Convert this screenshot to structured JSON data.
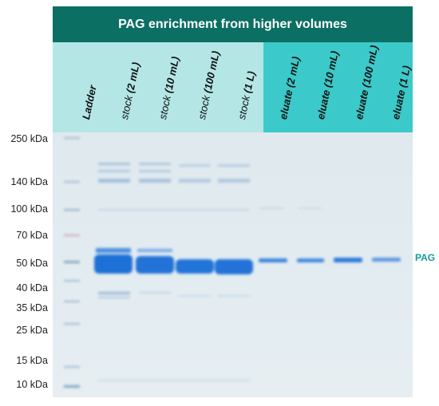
{
  "title": "PAG enrichment from higher volumes",
  "lanes": [
    {
      "prefix": "Ladder",
      "volume": "",
      "group": "ladder"
    },
    {
      "prefix": "stock ",
      "volume": "(2 mL)",
      "group": "stock"
    },
    {
      "prefix": "stock ",
      "volume": "(10 mL)",
      "group": "stock"
    },
    {
      "prefix": "stock ",
      "volume": "(100 mL)",
      "group": "stock"
    },
    {
      "prefix": "stock ",
      "volume": "(1 L)",
      "group": "stock"
    },
    {
      "prefix": "eluate ",
      "volume": "(2 mL)",
      "group": "eluate"
    },
    {
      "prefix": "eluate ",
      "volume": "(10 mL)",
      "group": "eluate"
    },
    {
      "prefix": "eluate ",
      "volume": "(100 mL)",
      "group": "eluate"
    },
    {
      "prefix": "eluate ",
      "volume": "(1 L)",
      "group": "eluate"
    }
  ],
  "mw_markers": [
    {
      "label": "250 kDa",
      "kda": 250
    },
    {
      "label": "140 kDa",
      "kda": 140
    },
    {
      "label": "100 kDa",
      "kda": 100
    },
    {
      "label": "70 kDa",
      "kda": 70
    },
    {
      "label": "50 kDa",
      "kda": 50
    },
    {
      "label": "40 kDa",
      "kda": 40
    },
    {
      "label": "35 kDa",
      "kda": 35
    },
    {
      "label": "25 kDa",
      "kda": 25
    },
    {
      "label": "15 kDa",
      "kda": 15
    },
    {
      "label": "10 kDa",
      "kda": 10
    }
  ],
  "band_label": "PAG",
  "colors": {
    "title_bar": "#0b6f63",
    "stock_header": "#b4e6e6",
    "eluate_header": "#3cc9c9",
    "gel_background": "#dde8ec",
    "band": "#1f6fd6",
    "pag_label": "#1a9a9a"
  }
}
